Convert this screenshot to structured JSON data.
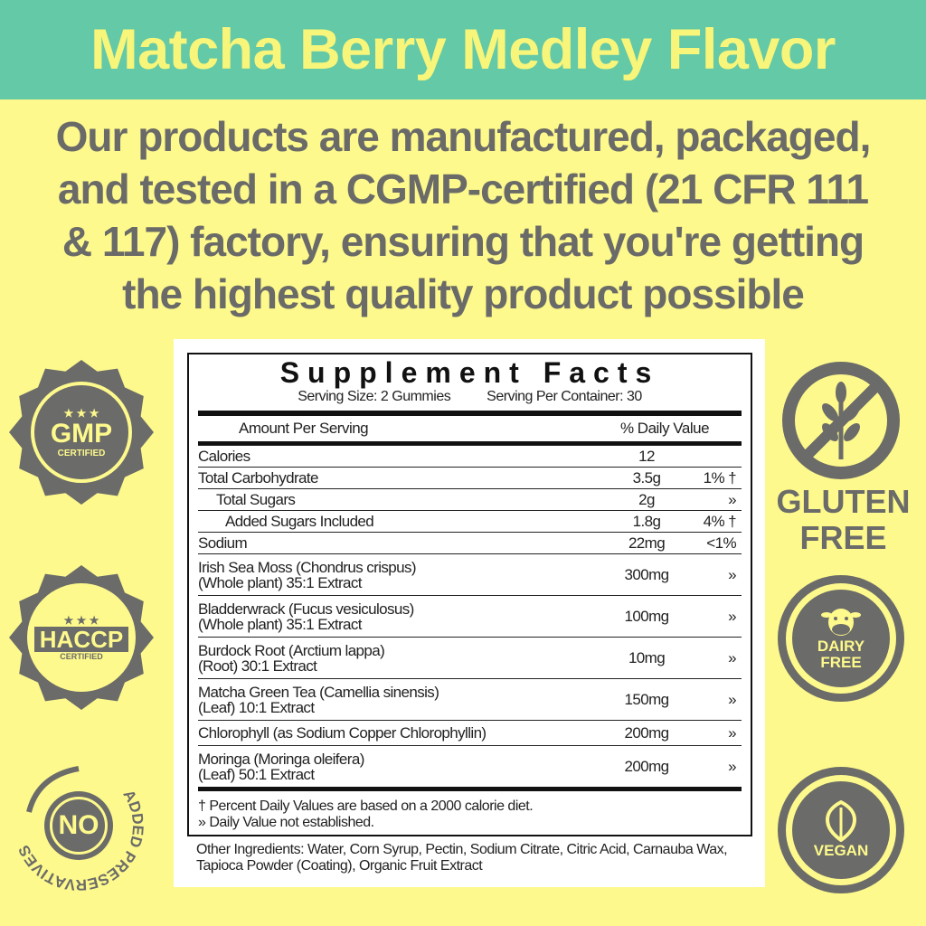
{
  "banner": {
    "title": "Matcha Berry Medley Flavor"
  },
  "headline": [
    "Our products are manufactured, packaged,",
    "and tested in a CGMP-certified (21 CFR 111",
    "& 117) factory, ensuring that you're getting",
    "the highest quality product possible"
  ],
  "facts": {
    "title": "Supplement Facts",
    "serving_size": "Serving Size: 2 Gummies",
    "servings": "Serving Per Container: 30",
    "amount_header": "Amount Per Serving",
    "dv_header": "% Daily Value",
    "rows": [
      {
        "name": "Calories",
        "amount": "12",
        "dv": ""
      },
      {
        "name": "Total Carbohydrate",
        "amount": "3.5g",
        "dv": "1% †"
      },
      {
        "name": "Total Sugars",
        "amount": "2g",
        "dv": "»"
      },
      {
        "name": "Added Sugars Included",
        "amount": "1.8g",
        "dv": "4% †"
      },
      {
        "name": "Sodium",
        "amount": "22mg",
        "dv": "<1%"
      }
    ],
    "ingredients": [
      {
        "name": "Irish Sea Moss (Chondrus crispus)",
        "sub": "(Whole plant) 35:1 Extract",
        "amount": "300mg",
        "dv": "»"
      },
      {
        "name": "Bladderwrack (Fucus vesiculosus)",
        "sub": "(Whole plant) 35:1 Extract",
        "amount": "100mg",
        "dv": "»"
      },
      {
        "name": "Burdock Root (Arctium lappa)",
        "sub": "(Root)  30:1 Extract",
        "amount": "10mg",
        "dv": "»"
      },
      {
        "name": "Matcha Green Tea (Camellia sinensis)",
        "sub": "(Leaf)  10:1 Extract",
        "amount": "150mg",
        "dv": "»"
      },
      {
        "name": "Chlorophyll (as Sodium Copper Chlorophyllin)",
        "sub": "",
        "amount": "200mg",
        "dv": "»"
      },
      {
        "name": "Moringa (Moringa oleifera)",
        "sub": "(Leaf) 50:1 Extract",
        "amount": "200mg",
        "dv": "»"
      }
    ],
    "footnote1": "† Percent Daily Values are based on a 2000 calorie diet.",
    "footnote2": "» Daily Value not established.",
    "other_ingredients": "Other Ingredients: Water, Corn Syrup, Pectin, Sodium Citrate, Citric Acid, Carnauba Wax, Tapioca Powder (Coating), Organic Fruit Extract"
  },
  "badges": {
    "gmp": {
      "main": "GMP",
      "sub": "CERTIFIED",
      "icon": "gmp-seal-icon"
    },
    "haccp": {
      "main": "HACCP",
      "sub": "CERTIFIED",
      "icon": "haccp-seal-icon"
    },
    "preservatives": {
      "main": "NO",
      "ring": "ADDED PRESERVATIVES",
      "icon": "no-preservatives-icon"
    },
    "gluten": {
      "line1": "GLUTEN",
      "line2": "FREE",
      "icon": "wheat-crossed-icon"
    },
    "dairy": {
      "line1": "DAIRY",
      "line2": "FREE",
      "icon": "cow-icon"
    },
    "vegan": {
      "label": "VEGAN",
      "icon": "leaf-icon"
    }
  },
  "colors": {
    "banner": "#63c9a7",
    "background": "#fdf98c",
    "title": "#f7f57a",
    "gray": "#6b6b69"
  }
}
